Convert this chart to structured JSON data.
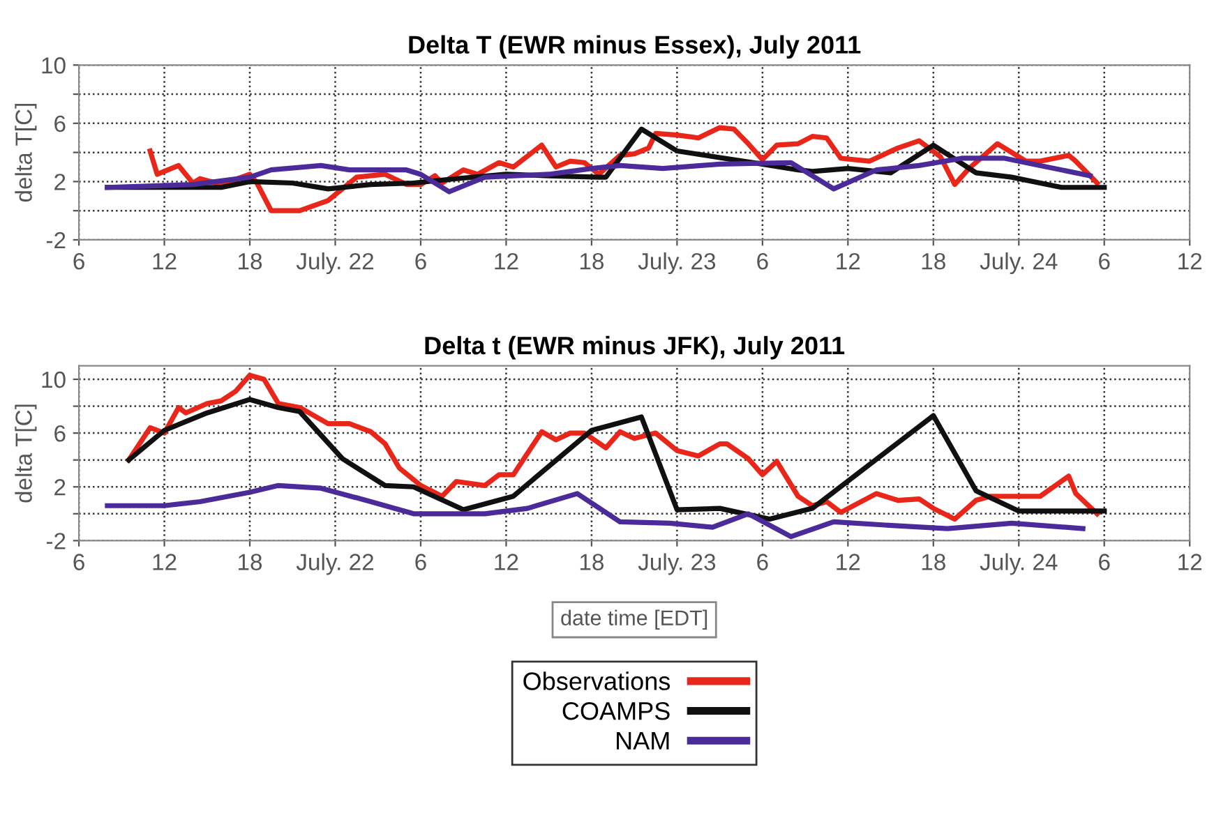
{
  "chart_data": [
    {
      "type": "line",
      "title": "Delta T (EWR minus Essex), July 2011",
      "ylabel": "delta T[C]",
      "xlim": [
        "2011-07-21T06:00",
        "2011-07-24T12:00"
      ],
      "ylim": [
        -2,
        10
      ],
      "xticks": [
        {
          "value": "2011-07-21T06:00",
          "label": "6"
        },
        {
          "value": "2011-07-21T12:00",
          "label": "12"
        },
        {
          "value": "2011-07-21T18:00",
          "label": "18"
        },
        {
          "value": "2011-07-22T00:00",
          "label": "July. 22"
        },
        {
          "value": "2011-07-22T06:00",
          "label": "6"
        },
        {
          "value": "2011-07-22T12:00",
          "label": "12"
        },
        {
          "value": "2011-07-22T18:00",
          "label": "18"
        },
        {
          "value": "2011-07-23T00:00",
          "label": "July. 23"
        },
        {
          "value": "2011-07-23T06:00",
          "label": "6"
        },
        {
          "value": "2011-07-23T12:00",
          "label": "12"
        },
        {
          "value": "2011-07-23T18:00",
          "label": "18"
        },
        {
          "value": "2011-07-24T00:00",
          "label": "July. 24"
        },
        {
          "value": "2011-07-24T06:00",
          "label": "6"
        },
        {
          "value": "2011-07-24T12:00",
          "label": "12"
        }
      ],
      "yticks": [
        -2,
        {
          "value": 0,
          "label": null
        },
        2,
        {
          "value": 4,
          "label": null
        },
        6,
        {
          "value": 8,
          "label": null
        },
        10
      ],
      "grid": true,
      "line_style": "solid",
      "series": [
        {
          "color": "#e8261a",
          "x": [
            "2011-07-21T11:00",
            "2011-07-21T11:30",
            "2011-07-21T13:00",
            "2011-07-21T14:00",
            "2011-07-21T14:30",
            "2011-07-21T16:00",
            "2011-07-21T18:00",
            "2011-07-21T18:30",
            "2011-07-21T19:30",
            "2011-07-21T21:30",
            "2011-07-21T23:30",
            "2011-07-22T01:30",
            "2011-07-22T03:30",
            "2011-07-22T05:00",
            "2011-07-22T06:00",
            "2011-07-22T07:00",
            "2011-07-22T07:30",
            "2011-07-22T09:00",
            "2011-07-22T10:00",
            "2011-07-22T11:30",
            "2011-07-22T12:30",
            "2011-07-22T14:30",
            "2011-07-22T15:30",
            "2011-07-22T16:30",
            "2011-07-22T17:30",
            "2011-07-22T18:30",
            "2011-07-22T20:00",
            "2011-07-22T21:00",
            "2011-07-22T22:00",
            "2011-07-22T22:30",
            "2011-07-23T00:00",
            "2011-07-23T01:30",
            "2011-07-23T03:00",
            "2011-07-23T04:00",
            "2011-07-23T05:00",
            "2011-07-23T06:00",
            "2011-07-23T07:00",
            "2011-07-23T08:30",
            "2011-07-23T09:30",
            "2011-07-23T10:30",
            "2011-07-23T11:30",
            "2011-07-23T13:30",
            "2011-07-23T15:30",
            "2011-07-23T17:00",
            "2011-07-23T18:30",
            "2011-07-23T19:30",
            "2011-07-23T20:30",
            "2011-07-23T22:30",
            "2011-07-24T00:30",
            "2011-07-24T01:30",
            "2011-07-24T03:30",
            "2011-07-24T04:00",
            "2011-07-24T05:30"
          ],
          "values": [
            4.1,
            2.5,
            3.1,
            1.9,
            2.2,
            1.8,
            2.5,
            1.9,
            0.0,
            0.0,
            0.7,
            2.3,
            2.5,
            1.8,
            1.8,
            2.4,
            1.9,
            2.8,
            2.5,
            3.3,
            3.0,
            4.5,
            3.0,
            3.4,
            3.3,
            2.5,
            3.8,
            3.9,
            4.3,
            5.3,
            5.2,
            5.0,
            5.7,
            5.6,
            4.6,
            3.5,
            4.5,
            4.6,
            5.1,
            5.0,
            3.6,
            3.4,
            4.3,
            4.8,
            3.7,
            1.8,
            2.9,
            4.6,
            3.4,
            3.4,
            3.8,
            3.4,
            1.9
          ]
        },
        {
          "color": "#101010",
          "x": [
            "2011-07-21T08:00",
            "2011-07-21T16:00",
            "2011-07-21T18:00",
            "2011-07-21T21:00",
            "2011-07-21T23:30",
            "2011-07-22T02:30",
            "2011-07-22T05:30",
            "2011-07-22T08:30",
            "2011-07-22T12:00",
            "2011-07-22T15:00",
            "2011-07-22T18:30",
            "2011-07-22T19:00",
            "2011-07-22T21:30",
            "2011-07-23T00:00",
            "2011-07-23T06:00",
            "2011-07-23T08:30",
            "2011-07-23T09:30",
            "2011-07-23T12:00",
            "2011-07-23T15:00",
            "2011-07-23T18:00",
            "2011-07-23T21:00",
            "2011-07-23T23:30",
            "2011-07-24T03:00",
            "2011-07-24T06:00"
          ],
          "values": [
            1.6,
            1.6,
            2.0,
            1.9,
            1.5,
            1.8,
            1.9,
            2.2,
            2.5,
            2.4,
            2.3,
            2.3,
            5.6,
            4.1,
            3.2,
            2.8,
            2.7,
            2.9,
            2.6,
            4.5,
            2.6,
            2.3,
            1.6,
            1.6
          ]
        },
        {
          "color": "#4b2a9a",
          "x": [
            "2011-07-21T08:00",
            "2011-07-21T14:00",
            "2011-07-21T18:00",
            "2011-07-21T19:30",
            "2011-07-21T23:00",
            "2011-07-22T01:00",
            "2011-07-22T05:00",
            "2011-07-22T06:00",
            "2011-07-22T08:00",
            "2011-07-22T10:30",
            "2011-07-22T15:00",
            "2011-07-22T18:00",
            "2011-07-22T20:00",
            "2011-07-22T23:00",
            "2011-07-23T03:00",
            "2011-07-23T08:00",
            "2011-07-23T11:00",
            "2011-07-23T14:00",
            "2011-07-23T17:00",
            "2011-07-23T20:00",
            "2011-07-23T23:00",
            "2011-07-24T01:30",
            "2011-07-24T05:00"
          ],
          "values": [
            1.6,
            1.8,
            2.3,
            2.8,
            3.1,
            2.8,
            2.8,
            2.5,
            1.3,
            2.3,
            2.5,
            2.9,
            3.1,
            2.9,
            3.2,
            3.3,
            1.5,
            2.8,
            3.1,
            3.6,
            3.6,
            3.1,
            2.4
          ]
        }
      ]
    },
    {
      "type": "line",
      "title": "Delta t (EWR minus JFK), July 2011",
      "ylabel": "delta T[C]",
      "xlabel": "date time [EDT]",
      "xlim": [
        "2011-07-21T06:00",
        "2011-07-24T12:00"
      ],
      "ylim": [
        -2,
        11
      ],
      "xticks": [
        {
          "value": "2011-07-21T06:00",
          "label": "6"
        },
        {
          "value": "2011-07-21T12:00",
          "label": "12"
        },
        {
          "value": "2011-07-21T18:00",
          "label": "18"
        },
        {
          "value": "2011-07-22T00:00",
          "label": "July. 22"
        },
        {
          "value": "2011-07-22T06:00",
          "label": "6"
        },
        {
          "value": "2011-07-22T12:00",
          "label": "12"
        },
        {
          "value": "2011-07-22T18:00",
          "label": "18"
        },
        {
          "value": "2011-07-23T00:00",
          "label": "July. 23"
        },
        {
          "value": "2011-07-23T06:00",
          "label": "6"
        },
        {
          "value": "2011-07-23T12:00",
          "label": "12"
        },
        {
          "value": "2011-07-23T18:00",
          "label": "18"
        },
        {
          "value": "2011-07-24T00:00",
          "label": "July. 24"
        },
        {
          "value": "2011-07-24T06:00",
          "label": "6"
        },
        {
          "value": "2011-07-24T12:00",
          "label": "12"
        }
      ],
      "yticks": [
        -2,
        {
          "value": 0,
          "label": null
        },
        2,
        {
          "value": 4,
          "label": null
        },
        6,
        {
          "value": 8,
          "label": null
        },
        10
      ],
      "grid": true,
      "line_style": "solid",
      "legend": "bottom",
      "series": [
        {
          "name": "Observations",
          "color": "#e8261a",
          "x": [
            "2011-07-21T09:30",
            "2011-07-21T11:00",
            "2011-07-21T12:00",
            "2011-07-21T13:00",
            "2011-07-21T13:30",
            "2011-07-21T15:00",
            "2011-07-21T16:00",
            "2011-07-21T17:00",
            "2011-07-21T18:00",
            "2011-07-21T19:00",
            "2011-07-21T20:00",
            "2011-07-21T21:30",
            "2011-07-21T23:30",
            "2011-07-22T01:00",
            "2011-07-22T02:30",
            "2011-07-22T03:30",
            "2011-07-22T04:30",
            "2011-07-22T06:00",
            "2011-07-22T07:30",
            "2011-07-22T08:30",
            "2011-07-22T10:30",
            "2011-07-22T11:30",
            "2011-07-22T12:30",
            "2011-07-22T14:30",
            "2011-07-22T15:30",
            "2011-07-22T16:30",
            "2011-07-22T17:30",
            "2011-07-22T19:00",
            "2011-07-22T20:00",
            "2011-07-22T21:00",
            "2011-07-22T22:30",
            "2011-07-23T00:00",
            "2011-07-23T01:30",
            "2011-07-23T03:00",
            "2011-07-23T03:30",
            "2011-07-23T05:00",
            "2011-07-23T06:00",
            "2011-07-23T07:00",
            "2011-07-23T08:30",
            "2011-07-23T09:30",
            "2011-07-23T10:30",
            "2011-07-23T11:30",
            "2011-07-23T14:00",
            "2011-07-23T15:30",
            "2011-07-23T17:00",
            "2011-07-23T18:00",
            "2011-07-23T19:30",
            "2011-07-23T21:00",
            "2011-07-23T22:00",
            "2011-07-24T01:30",
            "2011-07-24T03:30",
            "2011-07-24T04:00",
            "2011-07-24T05:30"
          ],
          "values": [
            4.0,
            6.4,
            6.0,
            7.9,
            7.5,
            8.2,
            8.4,
            9.1,
            10.3,
            10.0,
            8.2,
            7.9,
            6.7,
            6.7,
            6.1,
            5.2,
            3.4,
            2.1,
            1.3,
            2.4,
            2.1,
            2.9,
            2.9,
            6.1,
            5.5,
            6.0,
            6.0,
            4.9,
            6.1,
            5.6,
            6.0,
            4.7,
            4.3,
            5.2,
            5.2,
            4.1,
            2.9,
            3.9,
            1.3,
            0.6,
            0.9,
            0.1,
            1.5,
            1.0,
            1.1,
            0.4,
            -0.4,
            1.0,
            1.3,
            1.3,
            2.8,
            1.5,
            0.0
          ]
        },
        {
          "name": "COAMPS",
          "color": "#101010",
          "x": [
            "2011-07-21T09:30",
            "2011-07-21T12:00",
            "2011-07-21T15:00",
            "2011-07-21T18:00",
            "2011-07-21T20:00",
            "2011-07-21T21:30",
            "2011-07-22T00:30",
            "2011-07-22T03:30",
            "2011-07-22T05:30",
            "2011-07-22T09:00",
            "2011-07-22T12:30",
            "2011-07-22T18:00",
            "2011-07-22T21:30",
            "2011-07-23T00:00",
            "2011-07-23T03:00",
            "2011-07-23T06:30",
            "2011-07-23T09:30",
            "2011-07-23T18:00",
            "2011-07-23T21:00",
            "2011-07-24T00:00",
            "2011-07-24T06:00"
          ],
          "values": [
            4.0,
            6.2,
            7.5,
            8.5,
            7.9,
            7.6,
            4.1,
            2.1,
            2.0,
            0.3,
            1.3,
            6.2,
            7.2,
            0.3,
            0.4,
            -0.4,
            0.4,
            7.3,
            1.7,
            0.2,
            0.2
          ]
        },
        {
          "name": "NAM",
          "color": "#4b2a9a",
          "x": [
            "2011-07-21T08:00",
            "2011-07-21T12:00",
            "2011-07-21T14:30",
            "2011-07-21T18:00",
            "2011-07-21T20:00",
            "2011-07-21T23:00",
            "2011-07-22T02:30",
            "2011-07-22T05:30",
            "2011-07-22T10:30",
            "2011-07-22T13:30",
            "2011-07-22T17:00",
            "2011-07-22T20:00",
            "2011-07-22T23:30",
            "2011-07-23T02:30",
            "2011-07-23T05:00",
            "2011-07-23T08:00",
            "2011-07-23T11:00",
            "2011-07-23T15:30",
            "2011-07-23T19:00",
            "2011-07-23T23:30",
            "2011-07-24T04:30"
          ],
          "values": [
            0.6,
            0.6,
            0.9,
            1.6,
            2.1,
            1.9,
            0.9,
            0.0,
            0.0,
            0.4,
            1.5,
            -0.6,
            -0.7,
            -1.0,
            0.0,
            -1.7,
            -0.6,
            -0.9,
            -1.1,
            -0.7,
            -1.1
          ]
        }
      ]
    }
  ]
}
